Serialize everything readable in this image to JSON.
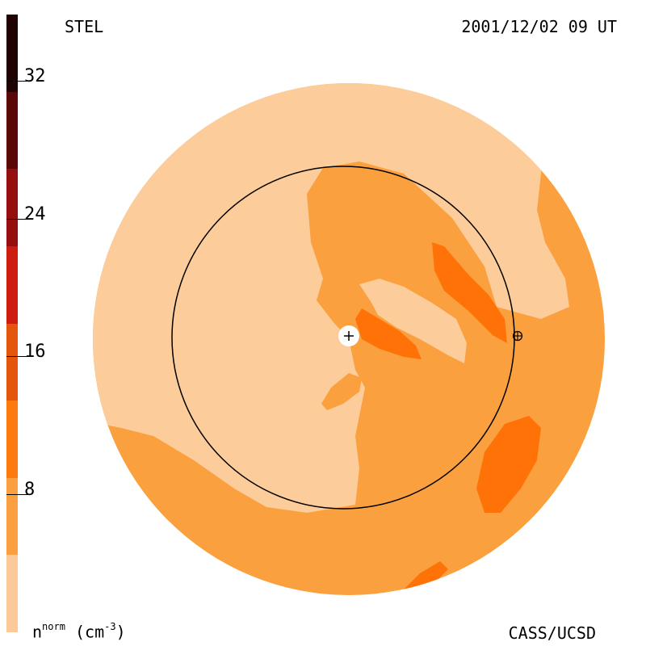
{
  "header": {
    "instrument": "STEL",
    "timestamp": "2001/12/02 09 UT"
  },
  "footer": {
    "credit": "CASS/UCSD",
    "units_base": "n",
    "units_sup": "norm",
    "units_unit": "(cm",
    "units_exp": "-3",
    "units_close": ")"
  },
  "colorbar": {
    "ticks": [
      "32",
      "24",
      "16",
      "8"
    ],
    "bands": [
      "#1f0303",
      "#5a0707",
      "#960f0f",
      "#cc1d10",
      "#e5560d",
      "#ff7a0e",
      "#fba040",
      "#fcca98"
    ]
  },
  "map": {
    "colors": {
      "low": "#fccc9a",
      "mid": "#fba03e",
      "high": "#ff7208",
      "orbit": "#000000",
      "sun": "#ffffff"
    },
    "sun_marker": "sun-icon",
    "earth_marker": "earth-icon"
  }
}
